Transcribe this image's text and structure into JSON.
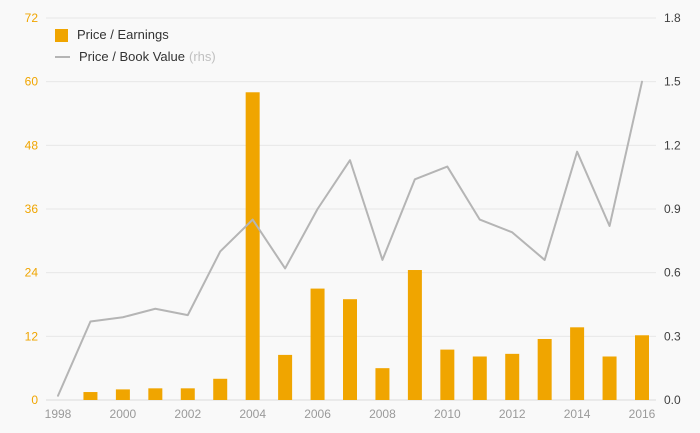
{
  "legend": {
    "pe_label": "Price / Earnings",
    "pb_label": "Price / Book Value",
    "pb_suffix": "(rhs)"
  },
  "chart_data": {
    "type": "bar",
    "subtype": "combo-bar-line",
    "categories": [
      "1998",
      "1999",
      "2000",
      "2001",
      "2002",
      "2003",
      "2004",
      "2005",
      "2006",
      "2007",
      "2008",
      "2009",
      "2010",
      "2011",
      "2012",
      "2013",
      "2014",
      "2015",
      "2016"
    ],
    "series": [
      {
        "name": "Price / Earnings",
        "type": "bar",
        "axis": "left",
        "color": "#F0A500",
        "values": [
          0,
          1.5,
          2.0,
          2.2,
          2.2,
          4.0,
          58.0,
          8.5,
          21.0,
          19.0,
          6.0,
          24.5,
          9.5,
          8.2,
          8.7,
          11.5,
          13.7,
          8.2,
          12.2
        ]
      },
      {
        "name": "Price / Book Value",
        "type": "line",
        "axis": "right",
        "color": "#b5b5b5",
        "values": [
          0.02,
          0.37,
          0.39,
          0.43,
          0.4,
          0.7,
          0.85,
          0.62,
          0.9,
          1.13,
          0.66,
          1.04,
          1.1,
          0.85,
          0.79,
          0.66,
          1.17,
          0.82,
          1.5
        ]
      }
    ],
    "left_axis": {
      "min": 0,
      "max": 72,
      "ticks": [
        0,
        12,
        24,
        36,
        48,
        60,
        72
      ],
      "label_color": "#F0A500"
    },
    "right_axis": {
      "min": 0,
      "max": 1.8,
      "ticks": [
        "0.0",
        "0.3",
        "0.6",
        "0.9",
        "1.2",
        "1.5",
        "1.8"
      ],
      "label_color": "#404040"
    },
    "x_axis": {
      "tick_years": [
        "1998",
        "2000",
        "2002",
        "2004",
        "2006",
        "2008",
        "2010",
        "2012",
        "2014",
        "2016"
      ],
      "label_color": "#9a9a9a"
    },
    "grid": {
      "on": true,
      "color": "#e7e7e7",
      "baseline_color": "#dcdcdc"
    },
    "legend_position": "top-left",
    "title": "",
    "xlabel": "",
    "ylabel_left": "",
    "ylabel_right": ""
  }
}
